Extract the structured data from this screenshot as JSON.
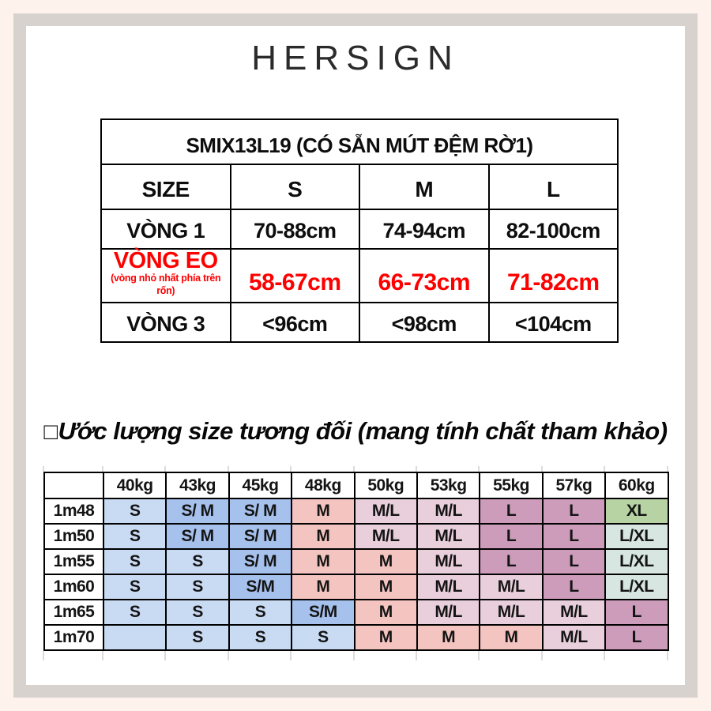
{
  "brand": {
    "logo": "HERSIGN"
  },
  "spec_table": {
    "title": "SMIX13L19 (CÓ SẴN MÚT ĐỆM RỜ1)",
    "headers": [
      "SIZE",
      "S",
      "M",
      "L"
    ],
    "rows": [
      {
        "label": "VÒNG 1",
        "sublabel": "",
        "values": [
          "70-88cm",
          "74-94cm",
          "82-100cm"
        ],
        "accent": false
      },
      {
        "label": "VÒNG EO",
        "sublabel": "(vòng nhỏ nhất phía trên rốn)",
        "values": [
          "58-67cm",
          "66-73cm",
          "71-82cm"
        ],
        "accent": true
      },
      {
        "label": "VÒNG 3",
        "sublabel": "",
        "values": [
          "<96cm",
          "<98cm",
          "<104cm"
        ],
        "accent": false
      }
    ],
    "accent_color": "#ff0000"
  },
  "estimate": {
    "heading_prefix": "□",
    "heading": "Ước lượng size tương đối (mang tính chất tham khảo)",
    "weights": [
      "40kg",
      "43kg",
      "45kg",
      "48kg",
      "50kg",
      "53kg",
      "55kg",
      "57kg",
      "60kg"
    ],
    "rows": [
      {
        "height": "1m48",
        "cells": [
          [
            "S",
            "lightblue"
          ],
          [
            "S/ M",
            "blue"
          ],
          [
            "S/ M",
            "blue"
          ],
          [
            "M",
            "salmon"
          ],
          [
            "M/L",
            "pink"
          ],
          [
            "M/L",
            "pink"
          ],
          [
            "L",
            "mauve"
          ],
          [
            "L",
            "mauve"
          ],
          [
            "XL",
            "green"
          ]
        ]
      },
      {
        "height": "1m50",
        "cells": [
          [
            "S",
            "lightblue"
          ],
          [
            "S/ M",
            "blue"
          ],
          [
            "S/ M",
            "blue"
          ],
          [
            "M",
            "salmon"
          ],
          [
            "M/L",
            "pink"
          ],
          [
            "M/L",
            "pink"
          ],
          [
            "L",
            "mauve"
          ],
          [
            "L",
            "mauve"
          ],
          [
            "L/XL",
            "teal"
          ]
        ]
      },
      {
        "height": "1m55",
        "cells": [
          [
            "S",
            "lightblue"
          ],
          [
            "S",
            "lightblue"
          ],
          [
            "S/ M",
            "blue"
          ],
          [
            "M",
            "salmon"
          ],
          [
            "M",
            "salmon"
          ],
          [
            "M/L",
            "pink"
          ],
          [
            "L",
            "mauve"
          ],
          [
            "L",
            "mauve"
          ],
          [
            "L/XL",
            "teal"
          ]
        ]
      },
      {
        "height": "1m60",
        "cells": [
          [
            "S",
            "lightblue"
          ],
          [
            "S",
            "lightblue"
          ],
          [
            "S/M",
            "blue"
          ],
          [
            "M",
            "salmon"
          ],
          [
            "M",
            "salmon"
          ],
          [
            "M/L",
            "pink"
          ],
          [
            "M/L",
            "pink"
          ],
          [
            "L",
            "mauve"
          ],
          [
            "L/XL",
            "teal"
          ]
        ]
      },
      {
        "height": "1m65",
        "cells": [
          [
            "S",
            "lightblue"
          ],
          [
            "S",
            "lightblue"
          ],
          [
            "S",
            "lightblue"
          ],
          [
            "S/M",
            "blue"
          ],
          [
            "M",
            "salmon"
          ],
          [
            "M/L",
            "pink"
          ],
          [
            "M/L",
            "pink"
          ],
          [
            "M/L",
            "pink"
          ],
          [
            "L",
            "mauve"
          ]
        ]
      },
      {
        "height": "1m70",
        "cells": [
          [
            "",
            "lightblue"
          ],
          [
            "S",
            "lightblue"
          ],
          [
            "S",
            "lightblue"
          ],
          [
            "S",
            "lightblue"
          ],
          [
            "M",
            "salmon"
          ],
          [
            "M",
            "salmon"
          ],
          [
            "M",
            "salmon"
          ],
          [
            "M/L",
            "pink"
          ],
          [
            "L",
            "mauve"
          ]
        ]
      }
    ],
    "colors": {
      "lightblue": "#c9daf3",
      "blue": "#a6c1ec",
      "salmon": "#f4c5c0",
      "pink": "#e9cfdc",
      "mauve": "#cd9cba",
      "green": "#b7d3a3",
      "teal": "#d8e6e1"
    }
  }
}
